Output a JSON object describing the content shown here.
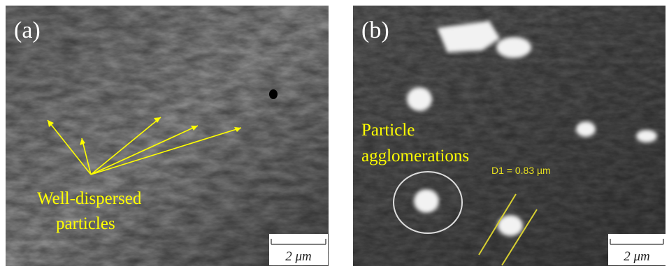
{
  "panels": [
    {
      "label": "(a)",
      "annotation": [
        "Well-dispersed",
        "particles"
      ],
      "scale_bar": "2 μm"
    },
    {
      "label": "(b)",
      "annotation": [
        "Particle",
        "agglomerations"
      ],
      "measurement": "D1 = 0.83 µm",
      "scale_bar": "2 μm"
    }
  ]
}
